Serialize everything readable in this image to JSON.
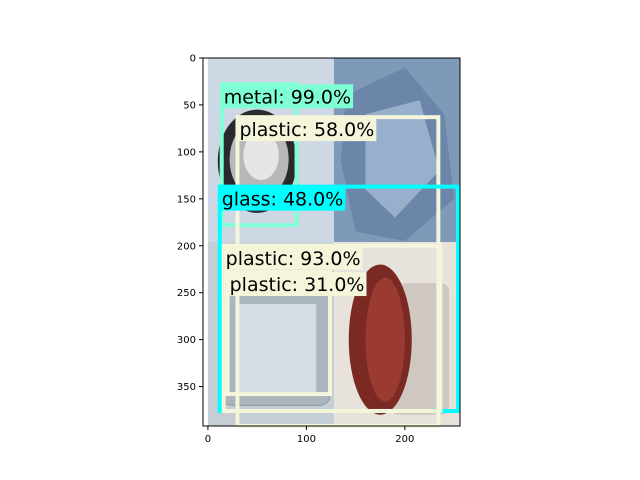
{
  "image_axes": {
    "x_ticks": [
      0,
      100,
      200
    ],
    "y_ticks": [
      0,
      50,
      100,
      150,
      200,
      250,
      300,
      350
    ],
    "xlim": [
      -5,
      256
    ],
    "ylim": [
      392,
      0
    ]
  },
  "photo": {
    "panels": [
      {
        "x0": 0,
        "y0": 0,
        "x1": 128,
        "y1": 196,
        "subject": "metal-can-lid",
        "color": "#cdd8e4"
      },
      {
        "x0": 128,
        "y0": 0,
        "x1": 256,
        "y1": 196,
        "subject": "crumpled-blue-plastic",
        "color": "#7f9ab8"
      },
      {
        "x0": 0,
        "y0": 196,
        "x1": 128,
        "y1": 392,
        "subject": "glass-jar",
        "color": "#c4ced4"
      },
      {
        "x0": 128,
        "y0": 196,
        "x1": 256,
        "y1": 392,
        "subject": "glass-jar-red-lid",
        "color": "#e8e2dc"
      }
    ]
  },
  "detections": [
    {
      "label": "metal: 99.0%",
      "x0": 14,
      "y0": 28,
      "x1": 90,
      "y1": 178,
      "color": "#7fffd4"
    },
    {
      "label": "plastic: 58.0%",
      "x0": 30,
      "y0": 63,
      "x1": 234,
      "y1": 392,
      "color": "#f5f5dc"
    },
    {
      "label": "glass: 48.0%",
      "x0": 12,
      "y0": 137,
      "x1": 254,
      "y1": 376,
      "color": "#00ffff"
    },
    {
      "label": "plastic: 93.0%",
      "x0": 16,
      "y0": 200,
      "x1": 236,
      "y1": 376,
      "color": "#f5f5dc"
    },
    {
      "label": "plastic: 31.0%",
      "x0": 20,
      "y0": 228,
      "x1": 124,
      "y1": 358,
      "color": "#f5f5dc"
    }
  ]
}
